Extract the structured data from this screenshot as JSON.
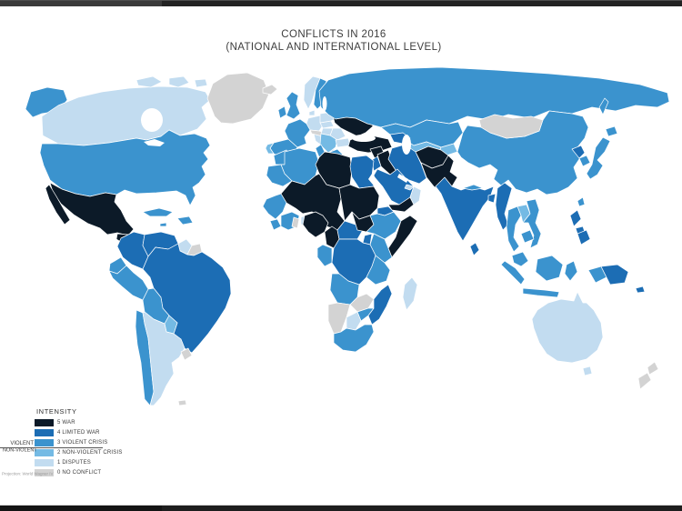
{
  "title": {
    "line1": "CONFLICTS IN 2016",
    "line2": "(NATIONAL AND INTERNATIONAL LEVEL)"
  },
  "legend": {
    "title": "INTENSITY",
    "items": [
      {
        "level": "5",
        "label": "5 WAR"
      },
      {
        "level": "4",
        "label": "4 LIMITED WAR"
      },
      {
        "level": "3",
        "label": "3 VIOLENT CRISIS"
      },
      {
        "level": "2",
        "label": "2 NON-VIOLENT CRISIS"
      },
      {
        "level": "1",
        "label": "1 DISPUTES"
      },
      {
        "level": "0",
        "label": "0 NO CONFLICT"
      }
    ],
    "colors": {
      "5": "#0c1a28",
      "4": "#1c6db4",
      "3": "#3b93ce",
      "2": "#74bae4",
      "1": "#c2dcf0",
      "0": "#d3d3d3"
    },
    "axis": {
      "violent": "VIOLENT",
      "nonviolent": "NON-VIOLENT"
    }
  },
  "footnote": "Projection: World Wagner IV",
  "map_regions": {
    "ocean_color": "#ffffff",
    "border_color": "#ffffff",
    "5_war": [
      "Mexico",
      "Guatemala",
      "Ukraine",
      "Turkey",
      "Syria",
      "Iraq",
      "Yemen",
      "Afghanistan",
      "Pakistan",
      "Libya",
      "Mali",
      "Niger",
      "Chad",
      "Nigeria",
      "Cameroon",
      "Sudan",
      "South Sudan",
      "Somalia"
    ],
    "4_limited_war": [
      "Colombia",
      "Venezuela",
      "Brazil",
      "Egypt",
      "Saudi Arabia",
      "Iran",
      "Israel/Jordan",
      "Caucasus",
      "India",
      "Bangladesh",
      "Myanmar",
      "Sri Lanka",
      "Philippines",
      "North Korea",
      "Papua New Guinea",
      "DR Congo",
      "Central African Republic",
      "Eritrea",
      "Uganda",
      "Mozambique"
    ],
    "3_violent_crisis": [
      "United States",
      "Alaska",
      "Cuba",
      "Honduras",
      "Panama",
      "Peru",
      "Ecuador",
      "Bolivia",
      "Chile",
      "United Kingdom",
      "Ireland",
      "France",
      "Spain",
      "Sweden",
      "Greece",
      "Russia",
      "Kazakhstan",
      "China",
      "Japan",
      "South Korea",
      "Thailand",
      "Vietnam",
      "Cambodia",
      "Indonesia",
      "Malaysia",
      "Morocco",
      "Algeria",
      "Tunisia",
      "Senegal",
      "Ethiopia",
      "Kenya",
      "Tanzania",
      "Angola",
      "Zimbabwe",
      "South Africa",
      "Congo"
    ],
    "2_nonviolent_crisis": [
      "Portugal",
      "Balkans",
      "Paraguay",
      "Turkmenistan",
      "Uzbekistan",
      "Laos"
    ],
    "1_disputes": [
      "Canada",
      "Argentina",
      "Australia",
      "Tasmania",
      "Germany",
      "Poland",
      "Norway",
      "Denmark",
      "Italy",
      "Belarus",
      "Romania",
      "Bulgaria",
      "Madagascar",
      "Botswana",
      "Oman",
      "UAE",
      "Togo/Benin",
      "Guyana"
    ],
    "0_no_conflict": [
      "Greenland",
      "Iceland",
      "Finland",
      "Alpine states",
      "Mongolia",
      "Uruguay",
      "Falklands",
      "Namibia",
      "Zambia",
      "Ghana",
      "New Zealand",
      "Suriname/French Guiana"
    ]
  }
}
